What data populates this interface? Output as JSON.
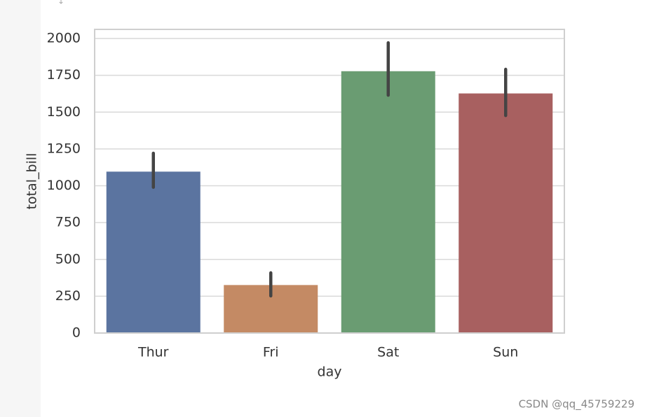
{
  "chart_data": {
    "type": "bar",
    "x_label": "day",
    "y_label": "total_bill",
    "categories": [
      "Thur",
      "Fri",
      "Sat",
      "Sun"
    ],
    "values": [
      1096,
      326,
      1778,
      1627
    ],
    "err_low": [
      990,
      252,
      1615,
      1477
    ],
    "err_high": [
      1221,
      409,
      1971,
      1791
    ],
    "colors": [
      "#5b74a0",
      "#c48a64",
      "#6a9c72",
      "#a86060"
    ],
    "ylim": [
      0,
      2062
    ],
    "yticks": [
      0,
      250,
      500,
      750,
      1000,
      1250,
      1500,
      1750,
      2000
    ],
    "grid": true
  },
  "watermark": "CSDN @qq_45759229"
}
